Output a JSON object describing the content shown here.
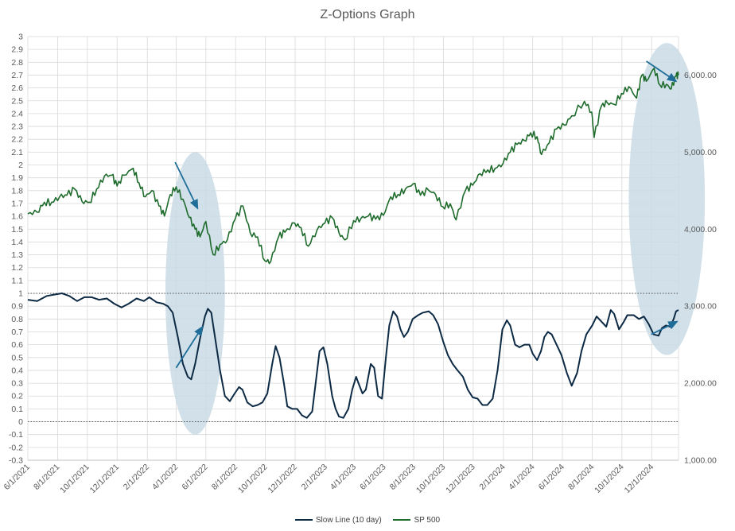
{
  "chart_data": {
    "type": "line",
    "title": "Z-Options Graph",
    "xlabel": "",
    "ylabel": "",
    "x_range": [
      "6/1/2021",
      "1/25/2025"
    ],
    "x_ticks": [
      "6/1/2021",
      "8/1/2021",
      "10/1/2021",
      "12/1/2021",
      "2/1/2022",
      "4/1/2022",
      "6/1/2022",
      "8/1/2022",
      "10/1/2022",
      "12/1/2022",
      "2/1/2023",
      "4/1/2023",
      "6/1/2023",
      "8/1/2023",
      "10/1/2023",
      "12/1/2023",
      "2/1/2024",
      "4/1/2024",
      "6/1/2024",
      "8/1/2024",
      "10/1/2024",
      "12/1/2024"
    ],
    "left_axis": {
      "min": -0.3,
      "max": 3,
      "step": 0.1,
      "ticks": [
        "3",
        "2.9",
        "2.8",
        "2.7",
        "2.6",
        "2.5",
        "2.4",
        "2.3",
        "2.2",
        "2.1",
        "2",
        "1.9",
        "1.8",
        "1.7",
        "1.6",
        "1.5",
        "1.4",
        "1.3",
        "1.2",
        "1.1",
        "1",
        "0.9",
        "0.8",
        "0.7",
        "0.6",
        "0.5",
        "0.4",
        "0.3",
        "0.2",
        "0.1",
        "0",
        "-0.1",
        "-0.2",
        "-0.3"
      ]
    },
    "right_axis": {
      "min": 1000,
      "max": 6500,
      "ticks": [
        "6,000.00",
        "5,000.00",
        "4,000.00",
        "3,000.00",
        "2,000.00",
        "1,000.00"
      ]
    },
    "reference_lines": [
      1,
      0
    ],
    "series": [
      {
        "name": "Slow Line (10 day)",
        "axis": "left",
        "color": "#0d2a45",
        "points": [
          [
            "6/1/2021",
            0.95
          ],
          [
            "6/20/2021",
            0.94
          ],
          [
            "7/10/2021",
            0.98
          ],
          [
            "7/25/2021",
            0.99
          ],
          [
            "8/10/2021",
            1.0
          ],
          [
            "8/25/2021",
            0.98
          ],
          [
            "9/10/2021",
            0.94
          ],
          [
            "9/25/2021",
            0.97
          ],
          [
            "10/10/2021",
            0.97
          ],
          [
            "10/25/2021",
            0.95
          ],
          [
            "11/10/2021",
            0.96
          ],
          [
            "11/25/2021",
            0.92
          ],
          [
            "12/10/2021",
            0.89
          ],
          [
            "12/25/2021",
            0.92
          ],
          [
            "1/10/2022",
            0.96
          ],
          [
            "1/25/2022",
            0.94
          ],
          [
            "2/5/2022",
            0.97
          ],
          [
            "2/20/2022",
            0.93
          ],
          [
            "3/5/2022",
            0.92
          ],
          [
            "3/15/2022",
            0.9
          ],
          [
            "3/25/2022",
            0.85
          ],
          [
            "4/5/2022",
            0.65
          ],
          [
            "4/15/2022",
            0.45
          ],
          [
            "4/25/2022",
            0.35
          ],
          [
            "5/2/2022",
            0.33
          ],
          [
            "5/10/2022",
            0.45
          ],
          [
            "5/20/2022",
            0.65
          ],
          [
            "5/30/2022",
            0.82
          ],
          [
            "6/5/2022",
            0.88
          ],
          [
            "6/12/2022",
            0.85
          ],
          [
            "6/20/2022",
            0.65
          ],
          [
            "6/30/2022",
            0.4
          ],
          [
            "7/10/2022",
            0.2
          ],
          [
            "7/20/2022",
            0.16
          ],
          [
            "7/30/2022",
            0.22
          ],
          [
            "8/8/2022",
            0.27
          ],
          [
            "8/15/2022",
            0.25
          ],
          [
            "8/25/2022",
            0.15
          ],
          [
            "9/5/2022",
            0.12
          ],
          [
            "9/15/2022",
            0.13
          ],
          [
            "9/25/2022",
            0.15
          ],
          [
            "10/5/2022",
            0.22
          ],
          [
            "10/15/2022",
            0.45
          ],
          [
            "10/22/2022",
            0.59
          ],
          [
            "10/30/2022",
            0.5
          ],
          [
            "11/8/2022",
            0.3
          ],
          [
            "11/15/2022",
            0.12
          ],
          [
            "11/25/2022",
            0.1
          ],
          [
            "12/5/2022",
            0.1
          ],
          [
            "12/15/2022",
            0.05
          ],
          [
            "12/25/2022",
            0.03
          ],
          [
            "1/5/2023",
            0.08
          ],
          [
            "1/12/2023",
            0.3
          ],
          [
            "1/20/2023",
            0.55
          ],
          [
            "1/28/2023",
            0.58
          ],
          [
            "2/5/2023",
            0.45
          ],
          [
            "2/15/2023",
            0.2
          ],
          [
            "2/22/2023",
            0.1
          ],
          [
            "3/1/2023",
            0.04
          ],
          [
            "3/10/2023",
            0.03
          ],
          [
            "3/20/2023",
            0.1
          ],
          [
            "3/28/2023",
            0.25
          ],
          [
            "4/5/2023",
            0.35
          ],
          [
            "4/10/2023",
            0.3
          ],
          [
            "4/18/2023",
            0.22
          ],
          [
            "4/25/2023",
            0.25
          ],
          [
            "5/5/2023",
            0.45
          ],
          [
            "5/12/2023",
            0.42
          ],
          [
            "5/20/2023",
            0.2
          ],
          [
            "5/28/2023",
            0.18
          ],
          [
            "6/5/2023",
            0.5
          ],
          [
            "6/12/2023",
            0.75
          ],
          [
            "6/20/2023",
            0.86
          ],
          [
            "6/28/2023",
            0.82
          ],
          [
            "7/5/2023",
            0.72
          ],
          [
            "7/12/2023",
            0.66
          ],
          [
            "7/20/2023",
            0.7
          ],
          [
            "7/30/2023",
            0.8
          ],
          [
            "8/10/2023",
            0.83
          ],
          [
            "8/20/2023",
            0.85
          ],
          [
            "9/1/2023",
            0.86
          ],
          [
            "9/10/2023",
            0.83
          ],
          [
            "9/20/2023",
            0.76
          ],
          [
            "10/1/2023",
            0.62
          ],
          [
            "10/10/2023",
            0.52
          ],
          [
            "10/20/2023",
            0.45
          ],
          [
            "10/30/2023",
            0.4
          ],
          [
            "11/10/2023",
            0.35
          ],
          [
            "11/20/2023",
            0.25
          ],
          [
            "11/30/2023",
            0.19
          ],
          [
            "12/10/2023",
            0.18
          ],
          [
            "12/20/2023",
            0.13
          ],
          [
            "12/30/2023",
            0.13
          ],
          [
            "1/10/2024",
            0.18
          ],
          [
            "1/20/2024",
            0.4
          ],
          [
            "1/30/2024",
            0.72
          ],
          [
            "2/8/2024",
            0.79
          ],
          [
            "2/15/2024",
            0.75
          ],
          [
            "2/25/2024",
            0.6
          ],
          [
            "3/5/2024",
            0.58
          ],
          [
            "3/15/2024",
            0.6
          ],
          [
            "3/25/2024",
            0.6
          ],
          [
            "4/1/2024",
            0.53
          ],
          [
            "4/10/2024",
            0.48
          ],
          [
            "4/18/2024",
            0.55
          ],
          [
            "4/25/2024",
            0.66
          ],
          [
            "5/2/2024",
            0.7
          ],
          [
            "5/10/2024",
            0.68
          ],
          [
            "5/20/2024",
            0.6
          ],
          [
            "5/30/2024",
            0.52
          ],
          [
            "6/10/2024",
            0.38
          ],
          [
            "6/20/2024",
            0.28
          ],
          [
            "7/1/2024",
            0.38
          ],
          [
            "7/10/2024",
            0.55
          ],
          [
            "7/20/2024",
            0.68
          ],
          [
            "8/1/2024",
            0.75
          ],
          [
            "8/10/2024",
            0.82
          ],
          [
            "8/20/2024",
            0.78
          ],
          [
            "8/30/2024",
            0.74
          ],
          [
            "9/8/2024",
            0.87
          ],
          [
            "9/15/2024",
            0.84
          ],
          [
            "9/25/2024",
            0.72
          ],
          [
            "10/5/2024",
            0.78
          ],
          [
            "10/12/2024",
            0.83
          ],
          [
            "10/25/2024",
            0.83
          ],
          [
            "11/5/2024",
            0.8
          ],
          [
            "11/15/2024",
            0.82
          ],
          [
            "11/25/2024",
            0.76
          ],
          [
            "12/5/2024",
            0.68
          ],
          [
            "12/15/2024",
            0.67
          ],
          [
            "12/22/2024",
            0.73
          ],
          [
            "12/30/2024",
            0.75
          ],
          [
            "1/8/2025",
            0.74
          ],
          [
            "1/15/2025",
            0.8
          ],
          [
            "1/20/2025",
            0.86
          ],
          [
            "1/25/2025",
            0.87
          ]
        ]
      },
      {
        "name": "SP 500",
        "axis": "right",
        "color": "#1e6b2c",
        "points": [
          [
            "6/1/2021",
            4200
          ],
          [
            "6/20/2021",
            4220
          ],
          [
            "7/5/2021",
            4350
          ],
          [
            "7/20/2021",
            4350
          ],
          [
            "8/5/2021",
            4420
          ],
          [
            "8/20/2021",
            4440
          ],
          [
            "9/5/2021",
            4520
          ],
          [
            "9/20/2021",
            4360
          ],
          [
            "10/5/2021",
            4350
          ],
          [
            "10/20/2021",
            4520
          ],
          [
            "11/5/2021",
            4690
          ],
          [
            "11/20/2021",
            4700
          ],
          [
            "12/1/2021",
            4560
          ],
          [
            "12/15/2021",
            4700
          ],
          [
            "1/3/2022",
            4790
          ],
          [
            "1/15/2022",
            4600
          ],
          [
            "1/28/2022",
            4420
          ],
          [
            "2/10/2022",
            4500
          ],
          [
            "2/25/2022",
            4300
          ],
          [
            "3/8/2022",
            4170
          ],
          [
            "3/20/2022",
            4450
          ],
          [
            "4/1/2022",
            4550
          ],
          [
            "4/15/2022",
            4390
          ],
          [
            "4/28/2022",
            4150
          ],
          [
            "5/10/2022",
            4000
          ],
          [
            "5/20/2022",
            3900
          ],
          [
            "6/1/2022",
            4100
          ],
          [
            "6/16/2022",
            3670
          ],
          [
            "6/30/2022",
            3800
          ],
          [
            "7/15/2022",
            3860
          ],
          [
            "7/31/2022",
            4130
          ],
          [
            "8/16/2022",
            4300
          ],
          [
            "8/31/2022",
            3950
          ],
          [
            "9/15/2022",
            3900
          ],
          [
            "9/30/2022",
            3590
          ],
          [
            "10/12/2022",
            3580
          ],
          [
            "10/28/2022",
            3900
          ],
          [
            "11/10/2022",
            3960
          ],
          [
            "11/30/2022",
            4080
          ],
          [
            "12/13/2022",
            4020
          ],
          [
            "12/28/2022",
            3780
          ],
          [
            "1/15/2023",
            3990
          ],
          [
            "1/31/2023",
            4080
          ],
          [
            "2/15/2023",
            4150
          ],
          [
            "3/1/2023",
            3950
          ],
          [
            "3/13/2023",
            3860
          ],
          [
            "3/31/2023",
            4110
          ],
          [
            "4/15/2023",
            4140
          ],
          [
            "4/30/2023",
            4170
          ],
          [
            "5/15/2023",
            4130
          ],
          [
            "5/31/2023",
            4180
          ],
          [
            "6/15/2023",
            4420
          ],
          [
            "6/30/2023",
            4450
          ],
          [
            "7/15/2023",
            4520
          ],
          [
            "7/31/2023",
            4590
          ],
          [
            "8/15/2023",
            4440
          ],
          [
            "8/31/2023",
            4510
          ],
          [
            "9/15/2023",
            4450
          ],
          [
            "9/30/2023",
            4290
          ],
          [
            "10/15/2023",
            4330
          ],
          [
            "10/27/2023",
            4120
          ],
          [
            "11/15/2023",
            4500
          ],
          [
            "11/30/2023",
            4570
          ],
          [
            "12/15/2023",
            4720
          ],
          [
            "12/31/2023",
            4770
          ],
          [
            "1/15/2024",
            4790
          ],
          [
            "1/31/2024",
            4850
          ],
          [
            "2/15/2024",
            5000
          ],
          [
            "2/29/2024",
            5100
          ],
          [
            "3/15/2024",
            5150
          ],
          [
            "3/28/2024",
            5250
          ],
          [
            "4/10/2024",
            5200
          ],
          [
            "4/19/2024",
            4970
          ],
          [
            "5/5/2024",
            5120
          ],
          [
            "5/20/2024",
            5300
          ],
          [
            "6/5/2024",
            5350
          ],
          [
            "6/20/2024",
            5470
          ],
          [
            "7/16/2024",
            5660
          ],
          [
            "7/31/2024",
            5520
          ],
          [
            "8/5/2024",
            5190
          ],
          [
            "8/20/2024",
            5600
          ],
          [
            "9/1/2024",
            5640
          ],
          [
            "9/15/2024",
            5620
          ],
          [
            "9/30/2024",
            5760
          ],
          [
            "10/15/2024",
            5850
          ],
          [
            "10/31/2024",
            5700
          ],
          [
            "11/11/2024",
            6000
          ],
          [
            "11/20/2024",
            5920
          ],
          [
            "12/6/2024",
            6090
          ],
          [
            "12/18/2024",
            5870
          ],
          [
            "12/31/2024",
            5880
          ],
          [
            "1/10/2025",
            5820
          ],
          [
            "1/20/2025",
            5990
          ],
          [
            "1/25/2025",
            6000
          ]
        ]
      }
    ],
    "annotations": [
      {
        "type": "ellipse",
        "around": "Apr–May 2022"
      },
      {
        "type": "ellipse",
        "around": "Dec 2024–Jan 2025"
      },
      {
        "type": "arrow",
        "series": "SP 500",
        "direction": "down",
        "from": "4/1/2022",
        "to": "5/15/2022"
      },
      {
        "type": "arrow",
        "series": "Slow Line (10 day)",
        "direction": "up",
        "from": "4/1/2022",
        "to": "5/15/2022"
      },
      {
        "type": "arrow",
        "series": "SP 500",
        "direction": "down",
        "from": "12/1/2024",
        "to": "1/25/2025"
      },
      {
        "type": "arrow",
        "series": "Slow Line (10 day)",
        "direction": "up",
        "from": "12/1/2024",
        "to": "1/25/2025"
      }
    ],
    "legend": {
      "position": "bottom",
      "entries": [
        "Slow Line (10 day)",
        "SP 500"
      ]
    },
    "grid": true
  },
  "colors": {
    "gridline": "#d9d9d9",
    "axis_text": "#595959",
    "ellipse": "#c9dbe5",
    "arrow": "#1f6e99"
  }
}
